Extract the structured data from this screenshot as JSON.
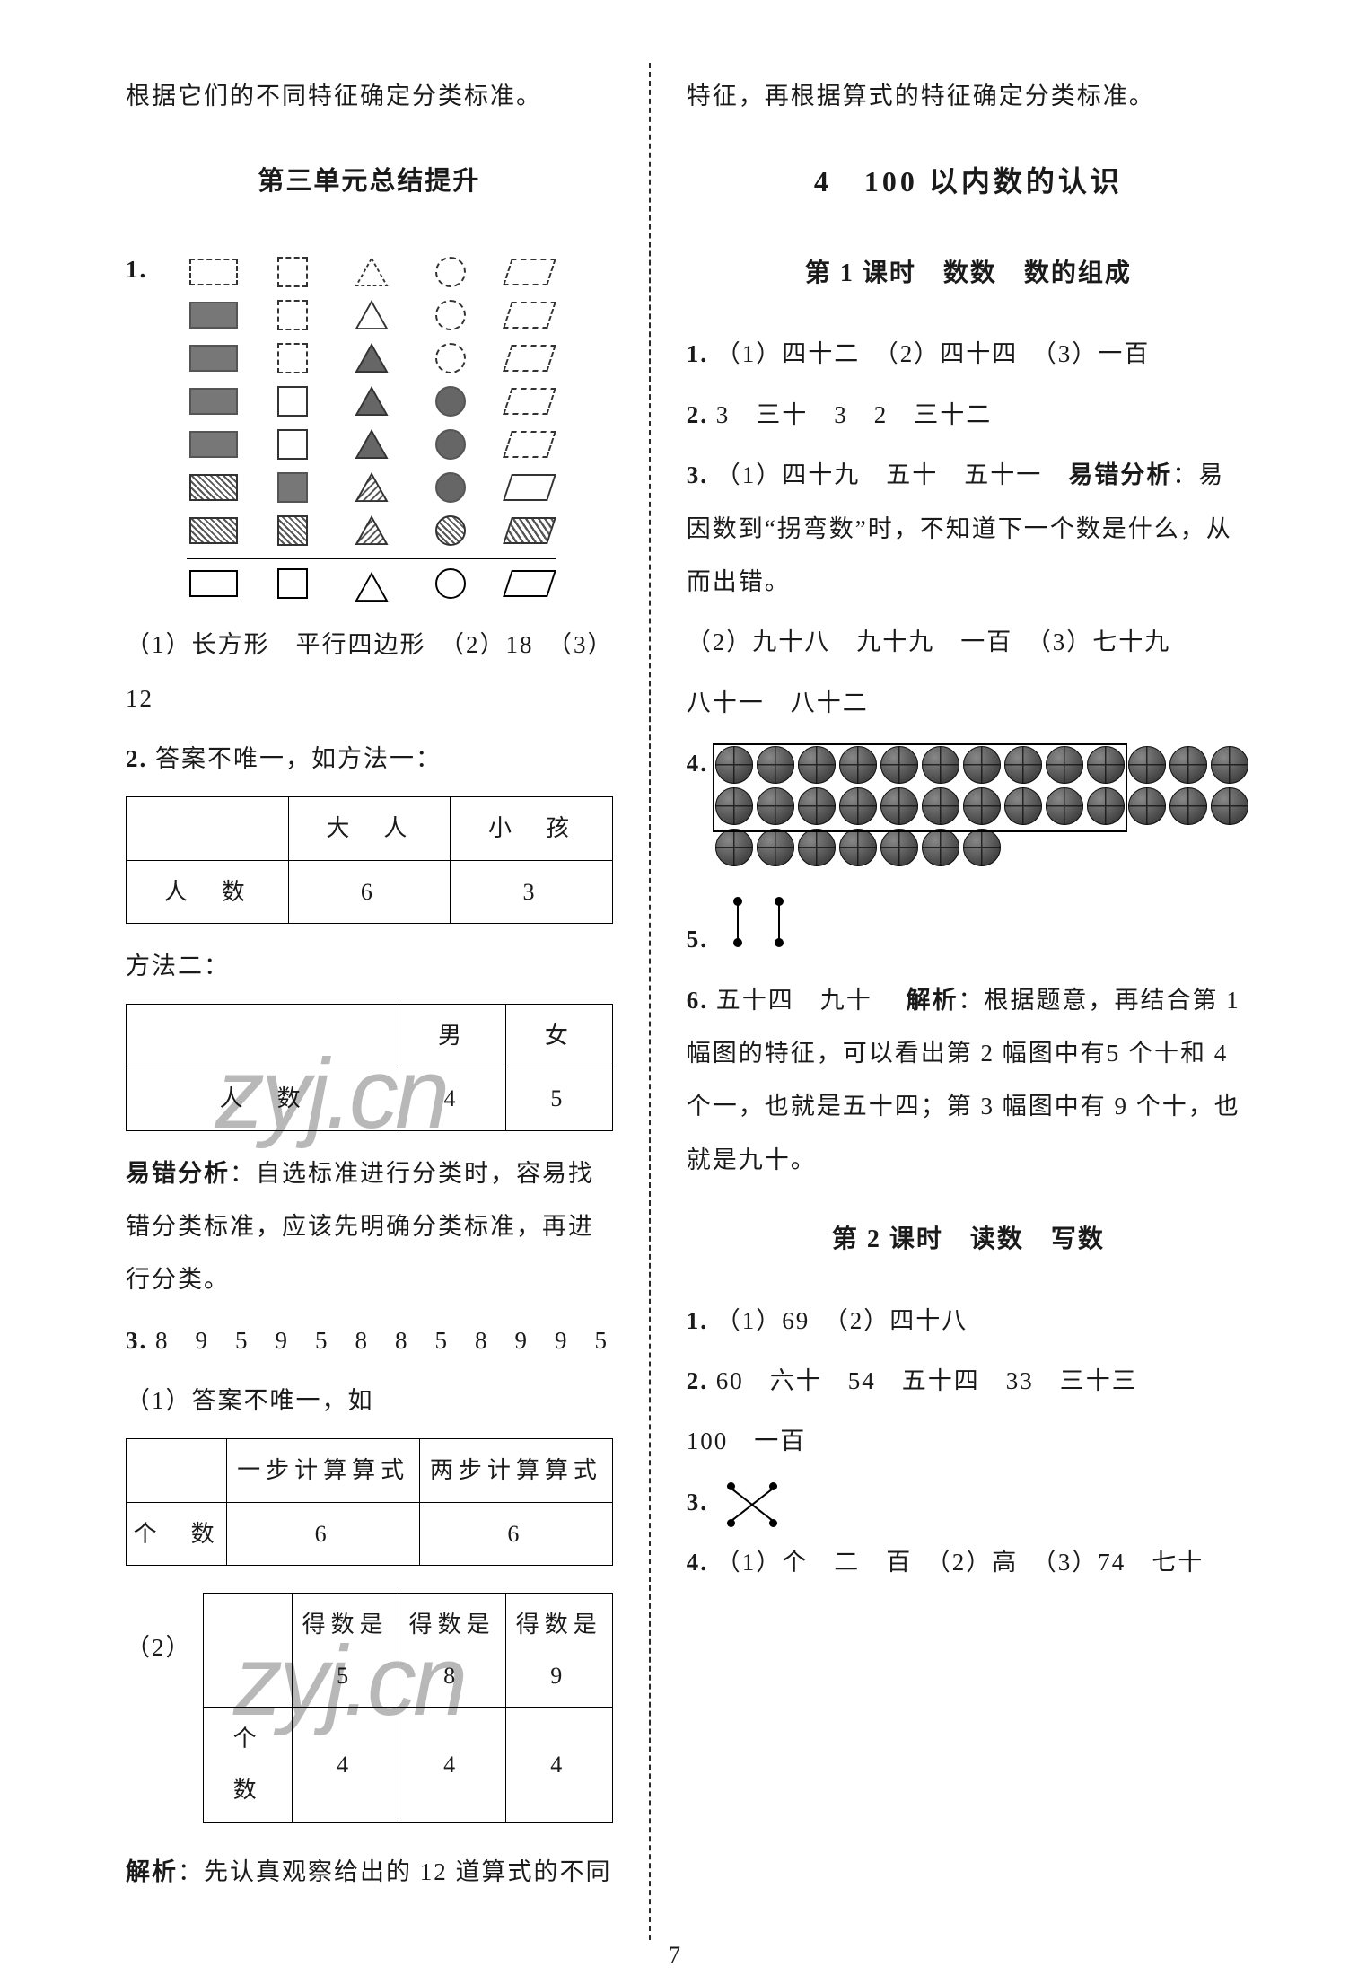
{
  "page_number": "7",
  "left": {
    "intro_line": "根据它们的不同特征确定分类标准。",
    "section_title": "第三单元总结提升",
    "q1": {
      "label": "1.",
      "shapes_chart": {
        "columns": [
          "长方形",
          "正方形",
          "三角形",
          "圆",
          "平行四边形"
        ],
        "rows_top_to_bottom": [
          [
            "dashed",
            "dashed",
            "dashed-outline",
            "dashed",
            "dashed"
          ],
          [
            "fill",
            "dashed",
            "outline",
            "dashed",
            "dashed"
          ],
          [
            "fill",
            "dashed",
            "fill",
            "dashed",
            "dashed"
          ],
          [
            "fill",
            "outline",
            "fill",
            "fill",
            "dashed"
          ],
          [
            "fill",
            "outline",
            "fill",
            "fill",
            "dashed"
          ],
          [
            "hatched",
            "fill",
            "hatched",
            "fill",
            "outline"
          ],
          [
            "hatched",
            "hatched",
            "hatched",
            "hatched",
            "hatched"
          ]
        ],
        "axis_icons": [
          "rect-outline",
          "square-outline",
          "triangle-outline",
          "circle-outline",
          "para-outline"
        ]
      },
      "answers": "（1）长方形　平行四边形　（2）18　（3）12"
    },
    "q2": {
      "label": "2.",
      "intro": "答案不唯一，如方法一：",
      "table1": {
        "headers": [
          "",
          "大　人",
          "小　孩"
        ],
        "row_label": "人　数",
        "values": [
          "6",
          "3"
        ]
      },
      "method2_label": "方法二：",
      "table2": {
        "headers": [
          "",
          "男",
          "女"
        ],
        "row_label": "人　数",
        "values": [
          "4",
          "5"
        ]
      },
      "analysis_label": "易错分析",
      "analysis": "：自选标准进行分类时，容易找错分类标准，应该先明确分类标准，再进行分类。"
    },
    "q3": {
      "label": "3.",
      "seq": "8　9　5　9　5　8　8　5　8　9　9　5",
      "part1_label": "（1）答案不唯一，如",
      "table3": {
        "headers": [
          "",
          "一步计算算式",
          "两步计算算式"
        ],
        "row_label": "个　数",
        "values": [
          "6",
          "6"
        ]
      },
      "part2_label": "（2）",
      "table4": {
        "headers": [
          "",
          "得数是 5",
          "得数是 8",
          "得数是 9"
        ],
        "row_label": "个　数",
        "values": [
          "4",
          "4",
          "4"
        ]
      },
      "footer_label": "解析",
      "footer": "：先认真观察给出的 12 道算式的不同"
    }
  },
  "right": {
    "cont_line": "特征，再根据算式的特征确定分类标准。",
    "chapter": "4　100 以内数的认识",
    "lesson1_title": "第 1 课时　数数　数的组成",
    "l1": {
      "q1": "（1）四十二　（2）四十四　（3）一百",
      "q2": "3　三十　3　2　三十二",
      "q3_a": "（1）四十九　五十　五十一　",
      "q3_err_label": "易错分析",
      "q3_err": "：易因数到“拐弯数”时，不知道下一个数是什么，从而出错。",
      "q3_b": "（2）九十八　九十九　一百　（3）七十九",
      "q3_c": "八十一　八十二",
      "q4_label": "4.",
      "q4_balls_total": 33,
      "q5_label": "5.",
      "q6_label": "6.",
      "q6_ans": "五十四　九十　",
      "q6_expl_label": "解析",
      "q6_expl": "：根据题意，再结合第 1 幅图的特征，可以看出第 2 幅图中有5 个十和 4 个一，也就是五十四；第 3 幅图中有 9 个十，也就是九十。"
    },
    "lesson2_title": "第 2 课时　读数　写数",
    "l2": {
      "q1": "（1）69　（2）四十八",
      "q2": "60　六十　54　五十四　33　三十三",
      "q2b": "100　一百",
      "q3_label": "3.",
      "q4": "（1）个　二　百　（2）高　（3）74　七十"
    }
  },
  "watermarks": {
    "text": "zyj.cn"
  }
}
